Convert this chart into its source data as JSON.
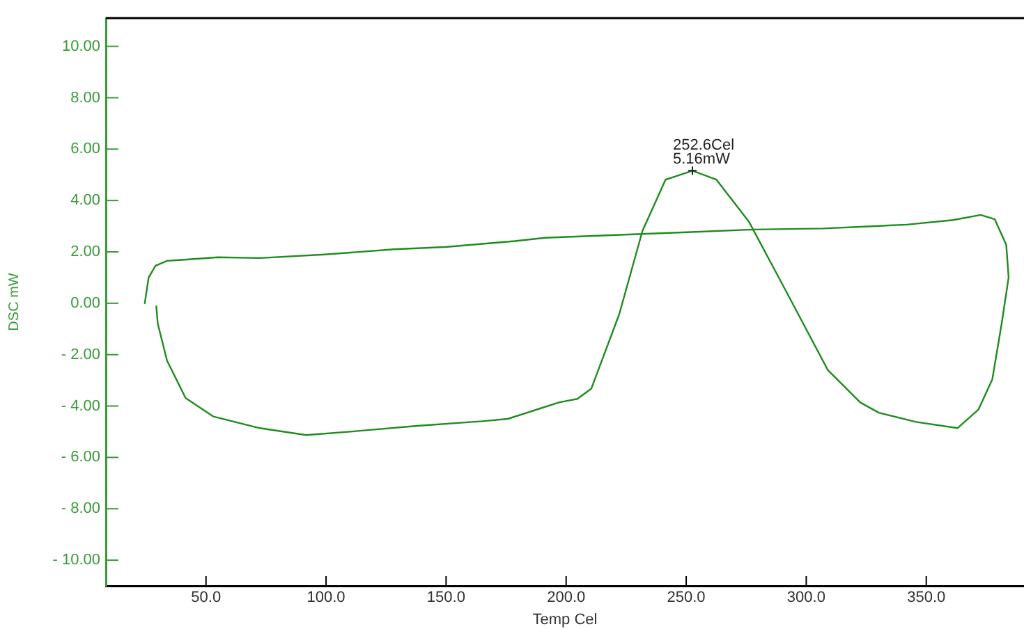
{
  "chart_data": {
    "type": "line",
    "xlabel": "Temp Cel",
    "ylabel": "DSC mW",
    "series": [
      {
        "color": "#1e8c1e",
        "x": [
          24.5,
          26.1,
          29.0,
          33.8,
          55,
          72.4,
          99.4,
          128.4,
          149.7,
          178.6,
          191.2,
          229.8,
          278.1,
          307.1,
          341.8,
          361.1,
          372.7,
          378.5,
          383.3,
          384.3,
          381.4,
          377.5,
          371.7,
          363.0,
          345.7,
          330.2,
          322.5,
          309.0,
          291.6,
          276.1,
          262.6,
          252.6,
          241.4,
          231.8,
          222.1,
          210.5,
          204.7,
          197.0,
          175.7,
          165.1,
          138.1,
          111.0,
          91.7,
          72.4,
          53.1,
          41.5,
          33.8,
          29.9,
          29.3
        ],
        "values": [
          0.0,
          1.0,
          1.46,
          1.65,
          1.79,
          1.76,
          1.9,
          2.1,
          2.19,
          2.42,
          2.55,
          2.69,
          2.87,
          2.91,
          3.06,
          3.24,
          3.44,
          3.27,
          2.28,
          1.01,
          -0.79,
          -2.96,
          -4.14,
          -4.86,
          -4.62,
          -4.26,
          -3.86,
          -2.6,
          0.47,
          3.18,
          4.81,
          5.16,
          4.81,
          2.82,
          -0.43,
          -3.32,
          -3.72,
          -3.86,
          -4.5,
          -4.59,
          -4.77,
          -4.99,
          -5.13,
          -4.86,
          -4.41,
          -3.69,
          -2.24,
          -0.79,
          -0.12
        ]
      }
    ],
    "xlim": [
      8.3,
      390.7
    ],
    "ylim": [
      -11,
      11.1
    ],
    "xticks": [
      {
        "value": 50,
        "label": "50.0"
      },
      {
        "value": 100,
        "label": "100.0"
      },
      {
        "value": 150,
        "label": "150.0"
      },
      {
        "value": 200,
        "label": "200.0"
      },
      {
        "value": 250,
        "label": "250.0"
      },
      {
        "value": 300,
        "label": "300.0"
      },
      {
        "value": 350,
        "label": "350.0"
      }
    ],
    "yticks": [
      {
        "value": 10,
        "label": "10.00"
      },
      {
        "value": 8,
        "label": "8.00"
      },
      {
        "value": 6,
        "label": "6.00"
      },
      {
        "value": 4,
        "label": "4.00"
      },
      {
        "value": 2,
        "label": "2.00"
      },
      {
        "value": 0,
        "label": "0.00"
      },
      {
        "value": -2,
        "label": "- 2.00"
      },
      {
        "value": -4,
        "label": "- 4.00"
      },
      {
        "value": -6,
        "label": "- 6.00"
      },
      {
        "value": -8,
        "label": "- 8.00"
      },
      {
        "value": -10,
        "label": "- 10.00"
      }
    ],
    "annotations": [
      {
        "text": "252.6Cel",
        "x": 252.6,
        "y": 5.16
      },
      {
        "text": "5.16mW",
        "x": 252.6,
        "y": 5.16
      }
    ],
    "legend": false,
    "marker": "none",
    "line_style": "solid"
  }
}
